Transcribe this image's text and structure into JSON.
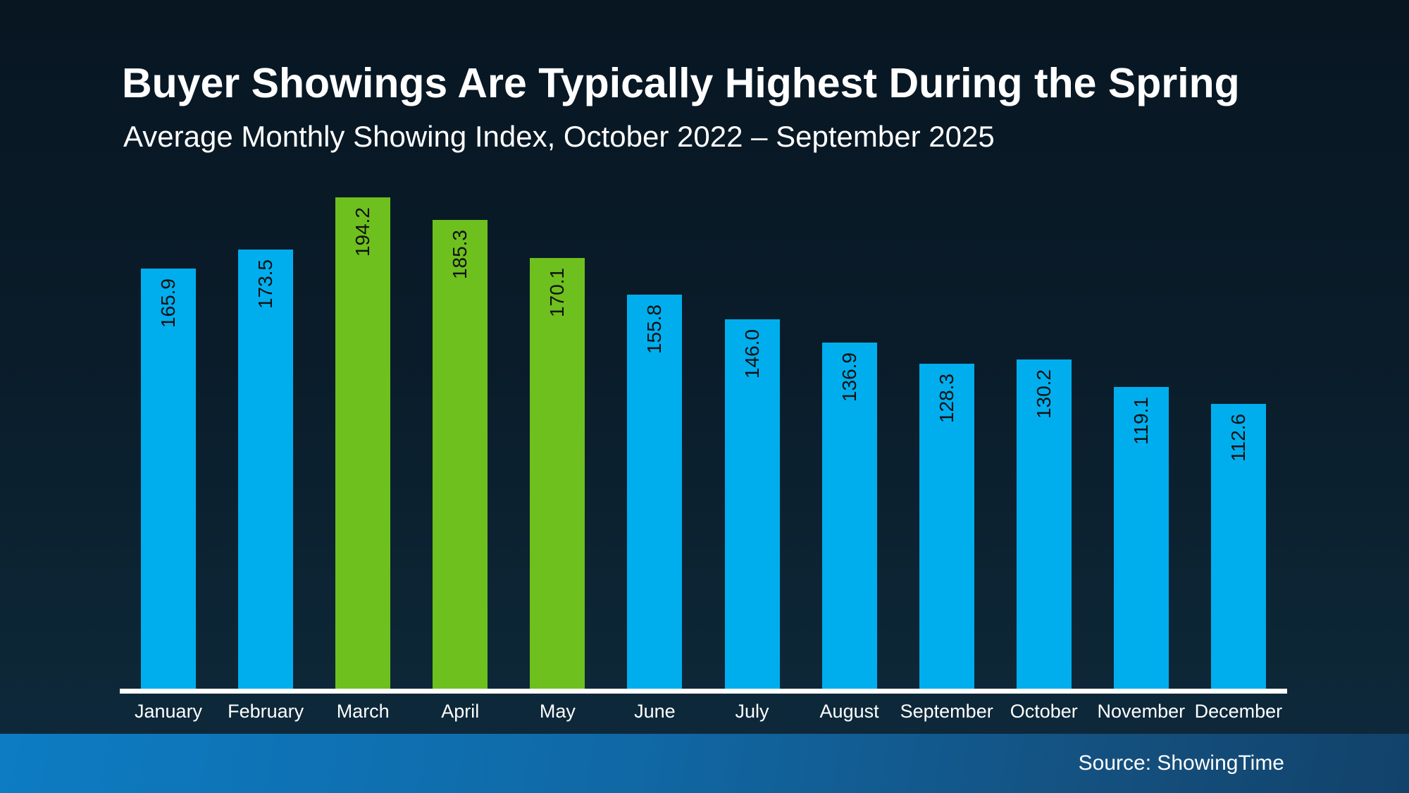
{
  "header": {
    "title": "Buyer Showings Are Typically Highest During the Spring",
    "subtitle": "Average Monthly Showing Index, October 2022 – September 2025"
  },
  "footer": {
    "source": "Source: ShowingTime"
  },
  "colors": {
    "bar_default": "#00AEEE",
    "bar_highlight": "#6EC01E",
    "value_label": "#111111",
    "axis_line": "#FFFFFF",
    "background_top": "#081622",
    "background_bottom": "#0E2A3E",
    "footer_left": "#0D7CC3",
    "footer_right": "#11426A",
    "text": "#FFFFFF"
  },
  "chart_data": {
    "type": "bar",
    "title": "Buyer Showings Are Typically Highest During the Spring",
    "subtitle": "Average Monthly Showing Index, October 2022 – September 2025",
    "xlabel": "",
    "ylabel": "",
    "ylim": [
      0,
      195
    ],
    "grid": false,
    "legend": false,
    "value_labels_rotated_vertical": true,
    "categories": [
      "January",
      "February",
      "March",
      "April",
      "May",
      "June",
      "July",
      "August",
      "September",
      "October",
      "November",
      "December"
    ],
    "values": [
      165.9,
      173.5,
      194.2,
      185.3,
      170.1,
      155.8,
      146.0,
      136.9,
      128.3,
      130.2,
      119.1,
      112.6
    ],
    "value_label_texts": [
      "165.9",
      "173.5",
      "194.2",
      "185.3",
      "170.1",
      "155.8",
      "146.0",
      "136.9",
      "128.3",
      "130.2",
      "119.1",
      "112.6"
    ],
    "highlighted": [
      false,
      false,
      true,
      true,
      true,
      false,
      false,
      false,
      false,
      false,
      false,
      false
    ],
    "highlight_meaning": "spring-months"
  }
}
